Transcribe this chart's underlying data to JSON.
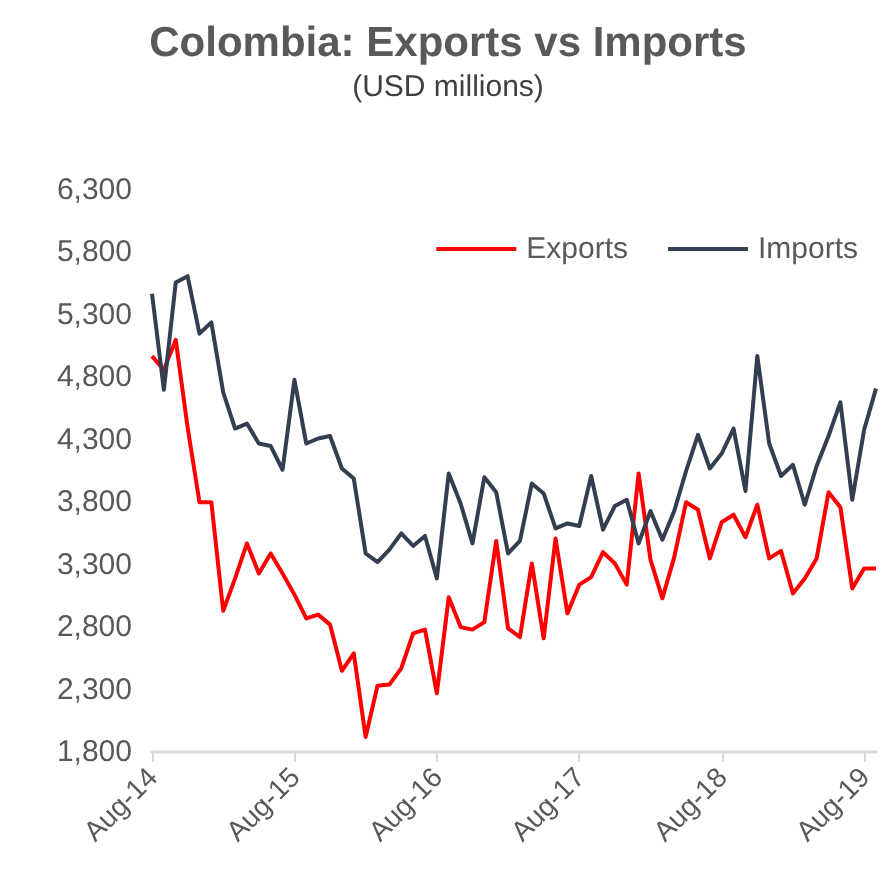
{
  "chart_data": {
    "type": "line",
    "title": "Colombia: Exports vs Imports",
    "subtitle": "(USD millions)",
    "categories": [
      "Aug-14",
      null,
      null,
      null,
      null,
      null,
      null,
      null,
      null,
      null,
      null,
      null,
      "Aug-15",
      null,
      null,
      null,
      null,
      null,
      null,
      null,
      null,
      null,
      null,
      null,
      "Aug-16",
      null,
      null,
      null,
      null,
      null,
      null,
      null,
      null,
      null,
      null,
      null,
      "Aug-17",
      null,
      null,
      null,
      null,
      null,
      null,
      null,
      null,
      null,
      null,
      null,
      "Aug-18",
      null,
      null,
      null,
      null,
      null,
      null,
      null,
      null,
      null,
      null,
      null,
      "Aug-19",
      null
    ],
    "series": [
      {
        "name": "Exports",
        "color": "#ff0000",
        "values": [
          4970,
          4860,
          5100,
          4400,
          3800,
          3800,
          2930,
          3190,
          3470,
          3230,
          3390,
          3230,
          3060,
          2870,
          2900,
          2820,
          2450,
          2590,
          1920,
          2330,
          2340,
          2470,
          2750,
          2780,
          2270,
          3040,
          2800,
          2780,
          2840,
          3490,
          2790,
          2720,
          3310,
          2710,
          3510,
          2910,
          3140,
          3200,
          3400,
          3310,
          3140,
          4030,
          3340,
          3030,
          3360,
          3800,
          3740,
          3350,
          3640,
          3700,
          3520,
          3780,
          3350,
          3410,
          3070,
          3190,
          3350,
          3880,
          3760,
          3110,
          3270,
          3270
        ]
      },
      {
        "name": "Imports",
        "color": "#333f50",
        "values": [
          5470,
          4700,
          5560,
          5610,
          5150,
          5240,
          4680,
          4390,
          4430,
          4270,
          4250,
          4060,
          4780,
          4270,
          4310,
          4330,
          4070,
          3990,
          3390,
          3320,
          3420,
          3550,
          3450,
          3530,
          3190,
          4030,
          3790,
          3470,
          4000,
          3880,
          3390,
          3490,
          3950,
          3870,
          3590,
          3630,
          3610,
          4010,
          3580,
          3770,
          3820,
          3470,
          3730,
          3500,
          3730,
          4050,
          4340,
          4070,
          4190,
          4390,
          3890,
          4970,
          4270,
          4010,
          4100,
          3780,
          4090,
          4330,
          4600,
          3820,
          4380,
          4710
        ]
      }
    ],
    "ylim": [
      1800,
      6300
    ],
    "yticks": [
      {
        "value": 1800,
        "label": "1,800"
      },
      {
        "value": 2300,
        "label": "2,300"
      },
      {
        "value": 2800,
        "label": "2,800"
      },
      {
        "value": 3300,
        "label": "3,300"
      },
      {
        "value": 3800,
        "label": "3,800"
      },
      {
        "value": 4300,
        "label": "4,300"
      },
      {
        "value": 4800,
        "label": "4,800"
      },
      {
        "value": 5300,
        "label": "5,300"
      },
      {
        "value": 5800,
        "label": "5,800"
      },
      {
        "value": 6300,
        "label": "6,300"
      }
    ],
    "grid": false,
    "legend": "top right"
  }
}
